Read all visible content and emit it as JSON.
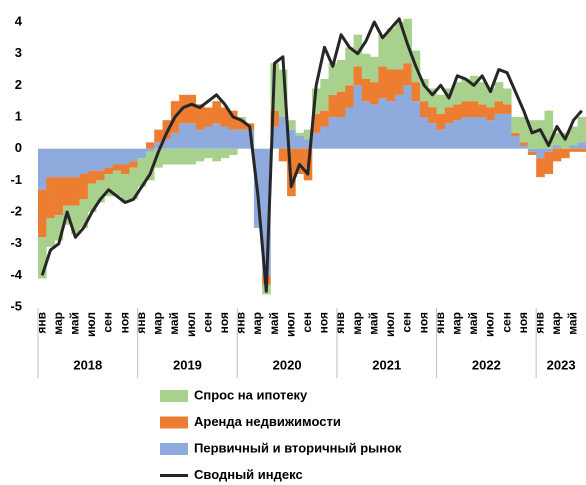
{
  "chart_data": {
    "type": "bar",
    "stacked": true,
    "categories": [
      "янв",
      null,
      "мар",
      null,
      "май",
      null,
      "июл",
      null,
      "сен",
      null,
      "ноя",
      null,
      "янв",
      null,
      "мар",
      null,
      "май",
      null,
      "июл",
      null,
      "сен",
      null,
      "ноя",
      null,
      "янв",
      null,
      "мар",
      null,
      "май",
      null,
      "июл",
      null,
      "сен",
      null,
      "ноя",
      null,
      "янв",
      null,
      "мар",
      null,
      "май",
      null,
      "июл",
      null,
      "сен",
      null,
      "ноя",
      null,
      "янв",
      null,
      "мар",
      null,
      "май",
      null,
      "июл",
      null,
      "сен",
      null,
      "ноя",
      null,
      "янв",
      null,
      "мар",
      null,
      "май",
      null
    ],
    "years": [
      "2018",
      "2019",
      "2020",
      "2021",
      "2022",
      "2023"
    ],
    "ylim": [
      -5,
      4
    ],
    "yticks": [
      -5,
      -4,
      -3,
      -2,
      -1,
      0,
      1,
      2,
      3,
      4
    ],
    "series": [
      {
        "name": "Спрос на ипотеку",
        "color": "#a9d18e",
        "values": [
          -1.3,
          -0.9,
          -0.8,
          -0.6,
          -0.9,
          -0.9,
          -0.9,
          -0.7,
          -0.7,
          -0.8,
          -0.9,
          -1.0,
          -0.9,
          -0.9,
          -0.6,
          -0.5,
          -0.5,
          -0.5,
          -0.5,
          -0.4,
          -0.3,
          -0.4,
          -0.3,
          -0.2,
          0.1,
          0,
          0,
          -0.3,
          1.5,
          1.5,
          0.3,
          0.1,
          0.3,
          0.8,
          1.0,
          1.0,
          1.0,
          1.2,
          1.0,
          0.8,
          0.8,
          1.0,
          1.3,
          1.5,
          1.4,
          1.0,
          0.7,
          0.6,
          0.6,
          0.6,
          0.7,
          0.7,
          0.8,
          0.7,
          0.6,
          0.6,
          0.5,
          0.5,
          0.8,
          0.9,
          0.9,
          1.2,
          0.4,
          0.5,
          0.6,
          0.8
        ]
      },
      {
        "name": "Аренда недвижимости",
        "color": "#ed7d31",
        "values": [
          -1.5,
          -1.3,
          -1.2,
          -0.9,
          -0.9,
          -0.8,
          -0.4,
          -0.3,
          -0.2,
          -0.2,
          -0.3,
          -0.2,
          0.0,
          0.2,
          0.4,
          0.6,
          1.0,
          0.9,
          0.9,
          0.8,
          0.6,
          0.7,
          0.6,
          0.6,
          0.3,
          0.2,
          0,
          -0.3,
          0.5,
          -0.4,
          -1.5,
          -0.8,
          -1.0,
          0.6,
          0.5,
          0.7,
          0.8,
          0.7,
          0.6,
          0.7,
          0.7,
          1.0,
          1.0,
          0.8,
          0.7,
          0.6,
          0.5,
          0.5,
          0.5,
          0.5,
          0.5,
          0.5,
          0.5,
          0.4,
          0.4,
          0.4,
          0.3,
          0.1,
          0.1,
          -0.1,
          -0.6,
          -0.7,
          -0.4,
          -0.3,
          -0.1,
          -0.1
        ]
      },
      {
        "name": "Первичный и вторичный рынок",
        "color": "#8faadc",
        "values": [
          -1.3,
          -0.9,
          -0.9,
          -0.9,
          -0.9,
          -0.8,
          -0.7,
          -0.7,
          -0.6,
          -0.5,
          -0.5,
          -0.4,
          -0.3,
          -0.1,
          0.2,
          0.3,
          0.5,
          0.8,
          0.8,
          0.6,
          0.7,
          0.8,
          0.7,
          0.6,
          0.6,
          0.6,
          -2.5,
          -4.0,
          0.7,
          1.0,
          0.6,
          0.4,
          0.3,
          0.5,
          0.7,
          1.0,
          1.0,
          1.3,
          2.0,
          1.5,
          1.4,
          1.6,
          1.5,
          1.7,
          2.0,
          1.5,
          1.0,
          0.8,
          0.6,
          0.8,
          0.9,
          1.0,
          1.0,
          1.0,
          0.9,
          1.1,
          1.1,
          0.4,
          0.1,
          -0.1,
          -0.3,
          -0.1,
          0.1,
          0.0,
          0.1,
          0.2
        ]
      },
      {
        "name": "Сводный индекс",
        "color": "#262626",
        "type": "line",
        "values": [
          -4.0,
          -3.2,
          -3.0,
          -2.0,
          -2.8,
          -2.5,
          -2.0,
          -1.6,
          -1.3,
          -1.5,
          -1.7,
          -1.6,
          -1.2,
          -0.8,
          -0.1,
          0.5,
          1.0,
          1.3,
          1.4,
          1.3,
          1.5,
          1.7,
          1.4,
          1.0,
          0.9,
          0.7,
          -1.5,
          -4.5,
          2.7,
          2.9,
          -1.2,
          -0.5,
          -0.8,
          2.0,
          3.2,
          2.6,
          3.6,
          3.2,
          3.0,
          3.4,
          4.0,
          3.5,
          3.8,
          4.1,
          3.3,
          2.6,
          2.0,
          1.7,
          2.0,
          1.6,
          2.3,
          2.2,
          2.0,
          2.3,
          1.8,
          2.5,
          2.4,
          1.8,
          1.2,
          0.5,
          0.6,
          0.1,
          0.7,
          0.3,
          0.9,
          1.2
        ]
      }
    ]
  }
}
